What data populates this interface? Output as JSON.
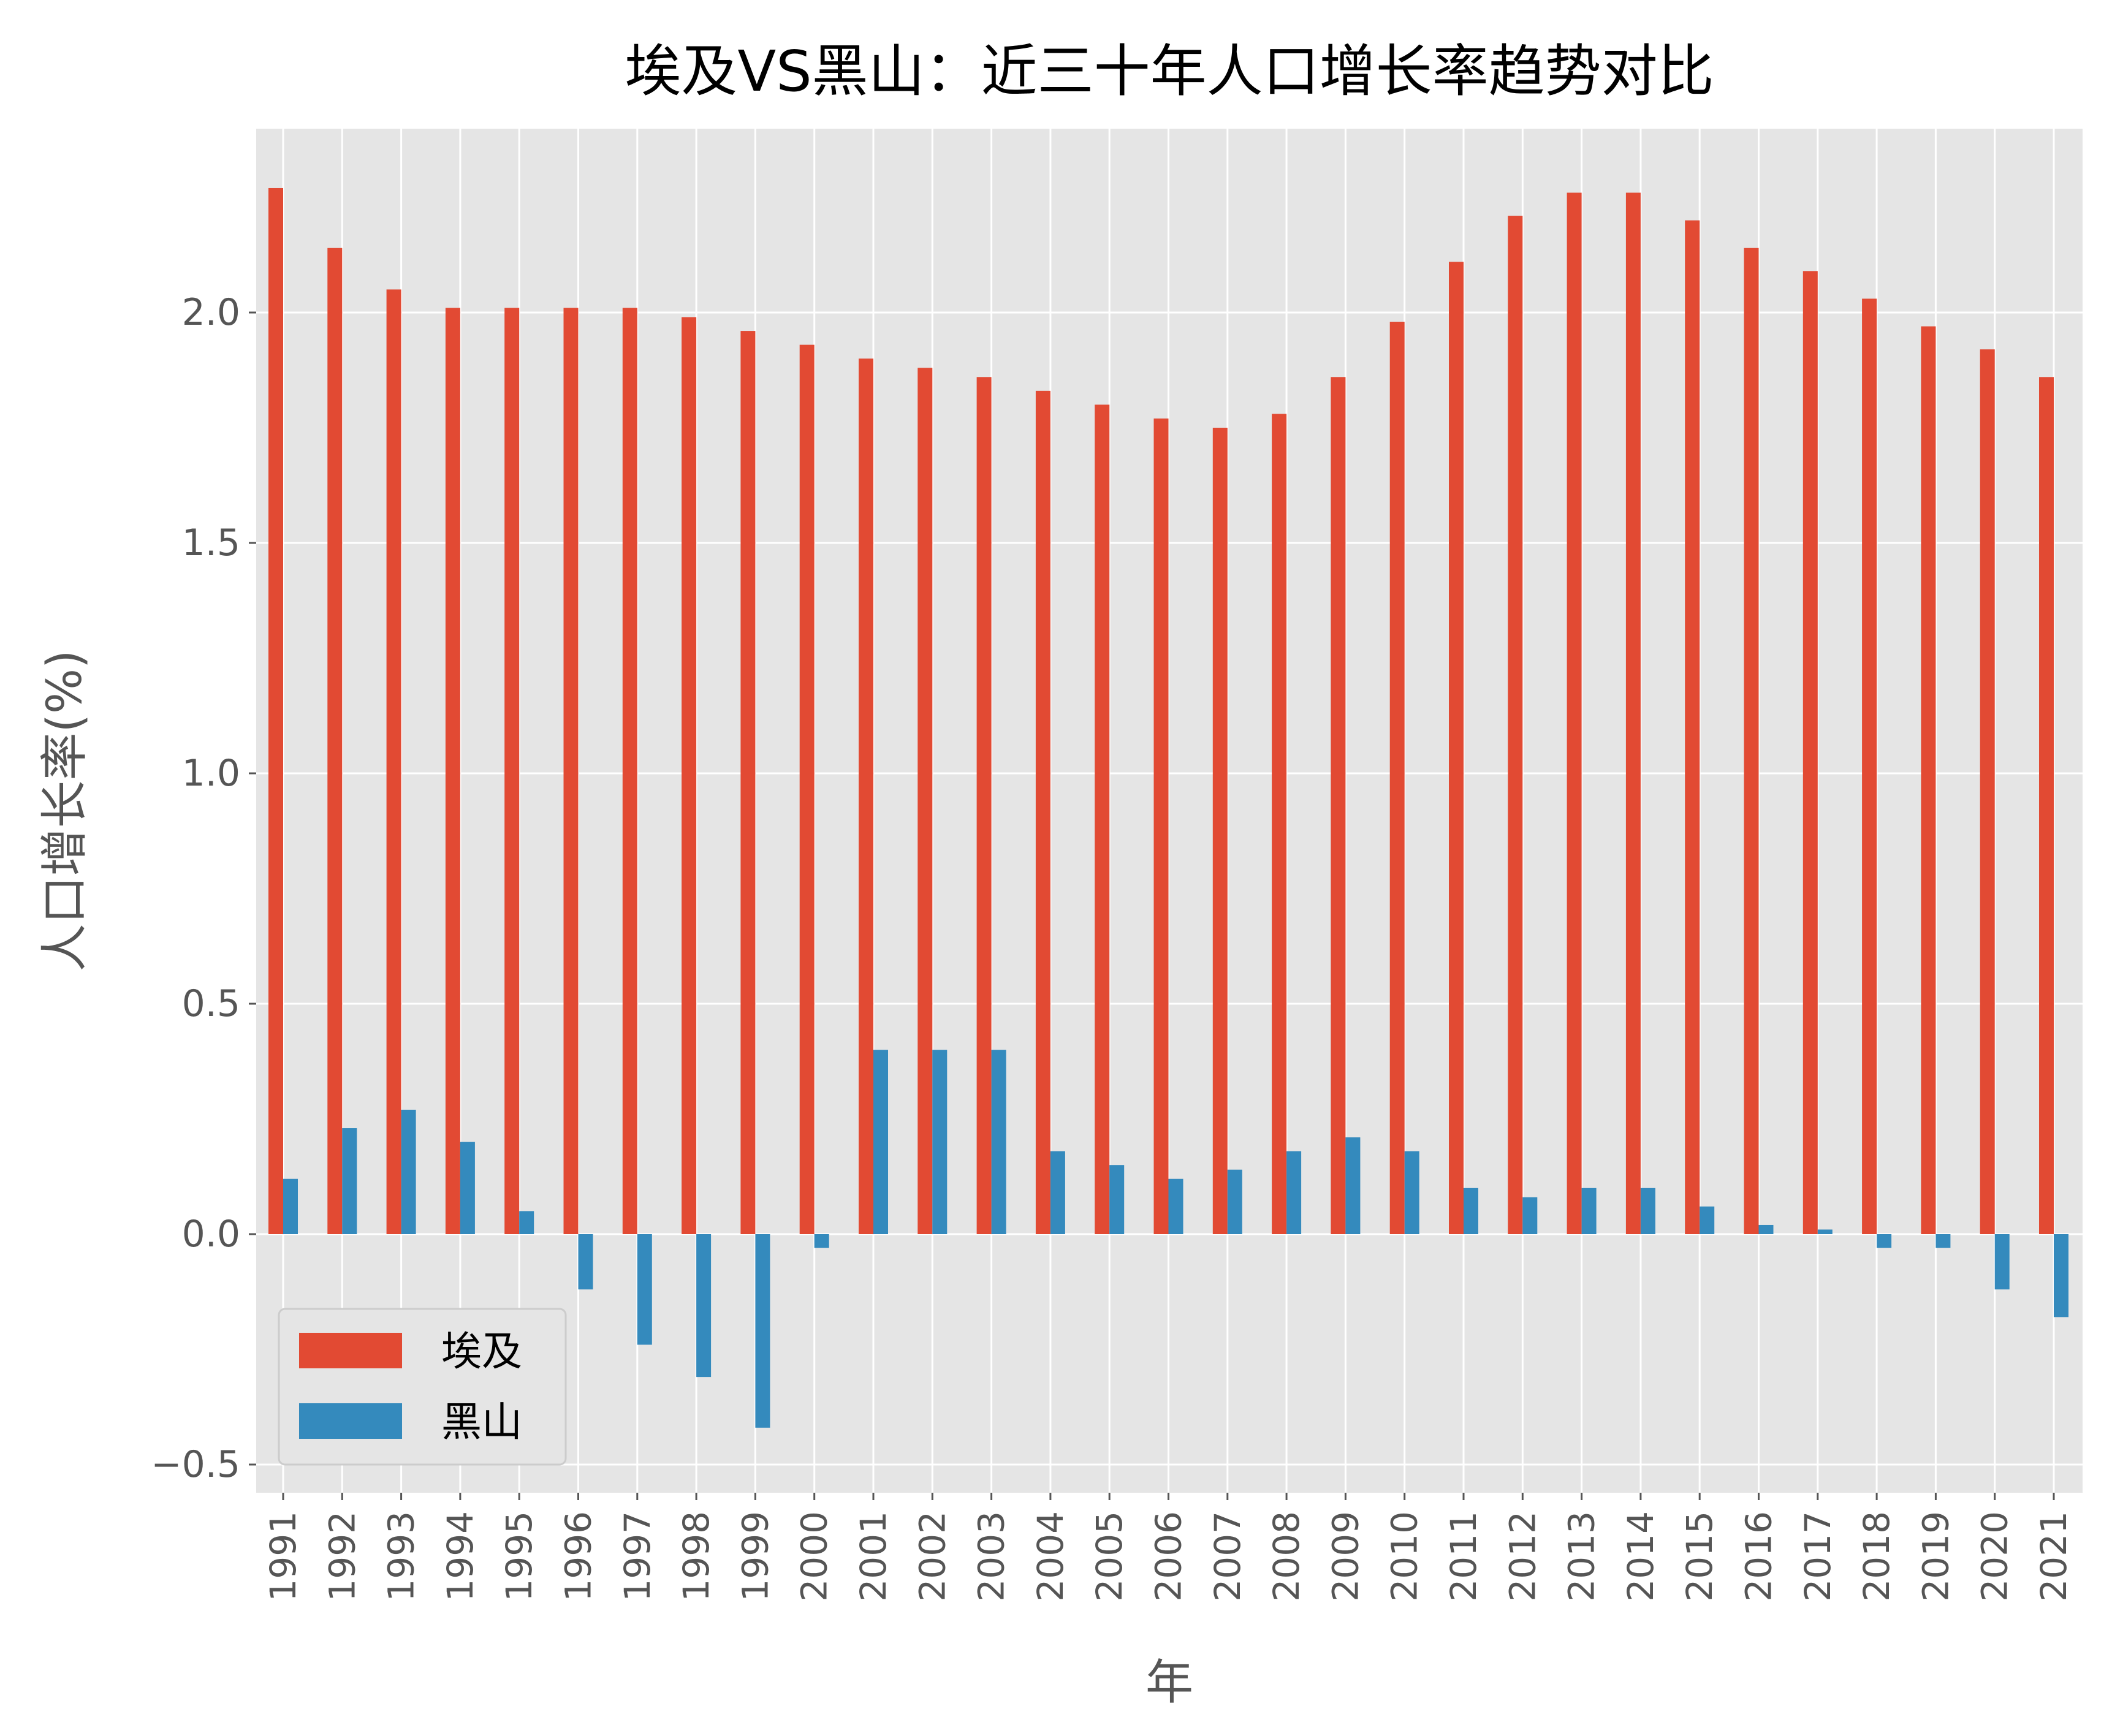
{
  "chart_data": {
    "type": "bar",
    "title": "埃及VS黑山：近三十年人口增长率趋势对比",
    "xlabel": "年",
    "ylabel": "人口增长率(%)",
    "categories": [
      "1991",
      "1992",
      "1993",
      "1994",
      "1995",
      "1996",
      "1997",
      "1998",
      "1999",
      "2000",
      "2001",
      "2002",
      "2003",
      "2004",
      "2005",
      "2006",
      "2007",
      "2008",
      "2009",
      "2010",
      "2011",
      "2012",
      "2013",
      "2014",
      "2015",
      "2016",
      "2017",
      "2018",
      "2019",
      "2020",
      "2021"
    ],
    "series": [
      {
        "name": "埃及",
        "color": "#E24A33",
        "values": [
          2.27,
          2.14,
          2.05,
          2.01,
          2.01,
          2.01,
          2.01,
          1.99,
          1.96,
          1.93,
          1.9,
          1.88,
          1.86,
          1.83,
          1.8,
          1.77,
          1.75,
          1.78,
          1.86,
          1.98,
          2.11,
          2.21,
          2.26,
          2.26,
          2.2,
          2.14,
          2.09,
          2.03,
          1.97,
          1.92,
          1.86
        ]
      },
      {
        "name": "黑山",
        "color": "#348ABD",
        "values": [
          0.12,
          0.23,
          0.27,
          0.2,
          0.05,
          -0.12,
          -0.24,
          -0.31,
          -0.42,
          -0.03,
          0.4,
          0.4,
          0.4,
          0.18,
          0.15,
          0.12,
          0.14,
          0.18,
          0.21,
          0.18,
          0.1,
          0.08,
          0.1,
          0.1,
          0.06,
          0.02,
          0.01,
          -0.03,
          -0.03,
          -0.12,
          -0.18
        ]
      }
    ],
    "yticks": [
      -0.5,
      0.0,
      0.5,
      1.0,
      1.5,
      2.0
    ],
    "ytick_labels": [
      "−0.5",
      "0.0",
      "0.5",
      "1.0",
      "1.5",
      "2.0"
    ],
    "ylim": [
      -0.55,
      2.4
    ],
    "grid": true,
    "legend_position": "lower-left",
    "background_color": "#E5E5E5"
  }
}
